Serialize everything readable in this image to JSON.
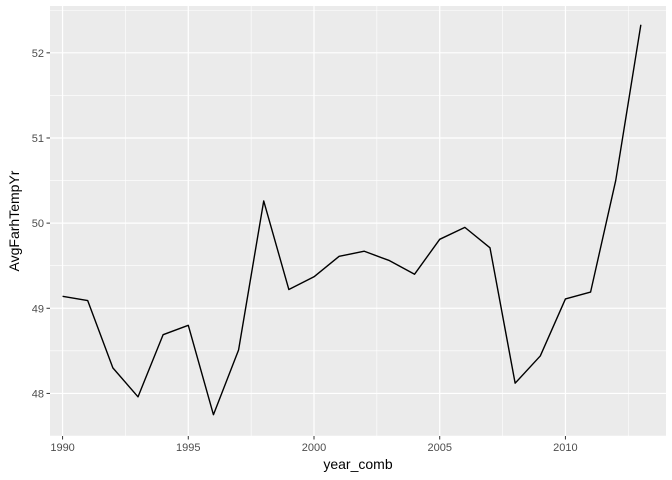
{
  "chart_data": {
    "type": "line",
    "xlabel": "year_comb",
    "ylabel": "AvgFarhTempYr",
    "xlim": [
      1989.5,
      2014
    ],
    "ylim": [
      47.5,
      52.55
    ],
    "x_ticks": [
      1990,
      1995,
      2000,
      2005,
      2010
    ],
    "y_ticks": [
      48,
      49,
      50,
      51,
      52
    ],
    "grid": true,
    "legend": "none",
    "colors": {
      "panel": "#ebebeb",
      "grid": "#ffffff",
      "line": "#000000"
    },
    "series": [
      {
        "x": [
          1990,
          1991,
          1992,
          1993,
          1994,
          1995,
          1996,
          1997,
          1998,
          1999,
          2000,
          2001,
          2002,
          2003,
          2004,
          2005,
          2006,
          2007,
          2008,
          2009,
          2010,
          2011,
          2012,
          2013
        ],
        "values": [
          49.14,
          49.09,
          48.3,
          47.96,
          48.69,
          48.8,
          47.75,
          48.51,
          50.26,
          49.22,
          49.37,
          49.61,
          49.67,
          49.56,
          49.4,
          49.81,
          49.95,
          49.71,
          48.12,
          48.44,
          49.11,
          49.19,
          50.5,
          52.33
        ]
      }
    ]
  }
}
